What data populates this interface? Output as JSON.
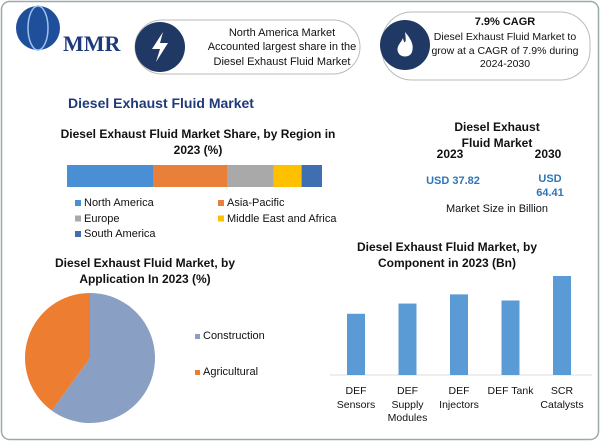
{
  "header": {
    "logo": "MMR",
    "highlight_1": "North America Market Accounted largest share in the Diesel Exhaust Fluid Market",
    "highlight_2_title": "7.9% CAGR",
    "highlight_2_text": "Diesel Exhaust Fluid Market to grow at a CAGR of 7.9% during 2024-2030"
  },
  "title": "Diesel Exhaust Fluid Market",
  "market_size": {
    "title": "Diesel Exhaust Fluid Market",
    "years": [
      "2023",
      "2030"
    ],
    "values": [
      "USD 37.82",
      "USD 64.41"
    ],
    "note": "Market Size in Billion"
  },
  "chart_data": [
    {
      "type": "stacked_bar",
      "title": "Diesel Exhaust Fluid Market Share, by Region in 2023 (%)",
      "series": [
        {
          "name": "North America",
          "color": "#4a8fd4",
          "values": [
            34
          ]
        },
        {
          "name": "Asia-Pacific",
          "color": "#e8803a",
          "values": [
            29
          ]
        },
        {
          "name": "Europe",
          "color": "#a9a9a9",
          "values": [
            18
          ]
        },
        {
          "name": "Middle East and Africa",
          "color": "#ffc000",
          "values": [
            11
          ]
        },
        {
          "name": "South America",
          "color": "#3f6fb0",
          "values": [
            8
          ]
        }
      ]
    },
    {
      "type": "pie",
      "title": "Diesel Exhaust Fluid Market, by Application In 2023 (%)",
      "categories": [
        "Construction",
        "Agricultural"
      ],
      "values": [
        60,
        40
      ],
      "colors": [
        "#8a9fc4",
        "#ed7d31"
      ]
    },
    {
      "type": "bar",
      "title": "Diesel Exhaust Fluid Market, by Component in 2023 (Bn)",
      "categories": [
        "DEF Sensors",
        "DEF Supply Modules",
        "DEF Injectors",
        "DEF Tank",
        "SCR Catalysts"
      ],
      "values": [
        6.0,
        7.0,
        7.9,
        7.3,
        9.7
      ],
      "color": "#5b9bd5"
    }
  ]
}
